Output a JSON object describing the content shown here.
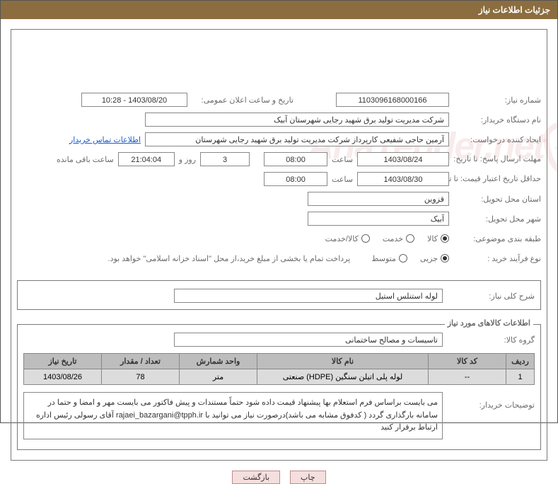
{
  "header": {
    "title": "جزئیات اطلاعات نیاز"
  },
  "need_number": {
    "label": "شماره نیاز:",
    "value": "1103096168000166"
  },
  "publish": {
    "label": "تاریخ و ساعت اعلان عمومی:",
    "value": "1403/08/20 - 10:28"
  },
  "buyer_org": {
    "label": "نام دستگاه خریدار:",
    "value": "شرکت مدیریت تولید برق شهید رجایی شهرستان آبیک"
  },
  "requester": {
    "label": "ایجاد کننده درخواست:",
    "value": "آرمین حاجی شفیعی کارپرداز شرکت مدیریت تولید برق شهید رجایی شهرستان",
    "contact_link": "اطلاعات تماس خریدار"
  },
  "response_deadline": {
    "label": "مهلت ارسال پاسخ: تا تاریخ:",
    "date": "1403/08/24",
    "time_label": "ساعت",
    "time": "08:00",
    "days": "3",
    "days_label": "روز و",
    "countdown": "21:04:04",
    "remain_label": "ساعت باقی مانده"
  },
  "price_validity": {
    "label": "حداقل تاریخ اعتبار قیمت: تا تاریخ:",
    "date": "1403/08/30",
    "time_label": "ساعت",
    "time": "08:00"
  },
  "delivery_province": {
    "label": "استان محل تحویل:",
    "value": "قزوین"
  },
  "delivery_city": {
    "label": "شهر محل تحویل:",
    "value": "آبیک"
  },
  "subject_class": {
    "label": "طبقه بندی موضوعی:",
    "options": [
      "کالا",
      "خدمت",
      "کالا/خدمت"
    ],
    "selected_index": 0
  },
  "process_type": {
    "label": "نوع فرآیند خرید :",
    "options": [
      "جزیی",
      "متوسط"
    ],
    "selected_index": 1,
    "note": "پرداخت تمام یا بخشی از مبلغ خرید،از محل \"اسناد خزانه اسلامی\" خواهد بود."
  },
  "summary_box": {
    "label": "شرح کلی نیاز:",
    "value": "لوله استنلس استیل"
  },
  "items_section": {
    "title": "اطلاعات کالاهای مورد نیاز",
    "group": {
      "label": "گروه کالا:",
      "value": "تاسیسات و مصالح ساختمانی"
    },
    "columns": [
      "ردیف",
      "کد کالا",
      "نام کالا",
      "واحد شمارش",
      "تعداد / مقدار",
      "تاریخ نیاز"
    ],
    "rows": [
      [
        "1",
        "--",
        "لوله پلی اتیلن سنگین (HDPE) صنعتی",
        "متر",
        "78",
        "1403/08/26"
      ]
    ],
    "col_widths": [
      "40px",
      "110px",
      "auto",
      "110px",
      "110px",
      "110px"
    ]
  },
  "buyer_desc": {
    "label": "توضیحات خریدار:",
    "value": "می بایست براساس فرم استعلام بها پیشنهاد قیمت داده شود حتماً مستندات و پیش فاکتور می بایست مهر و امضا و حتما در سامانه بارگذاری گردد ( کدفوق مشابه می باشد)درصورت نیاز می توانید با rajaei_bazargani@tpph.ir آقای رسولی رئیس اداره ارتباط برقرار کنید"
  },
  "buttons": {
    "print": "چاپ",
    "back": "بازگشت"
  },
  "watermark": "AriaTender.net"
}
